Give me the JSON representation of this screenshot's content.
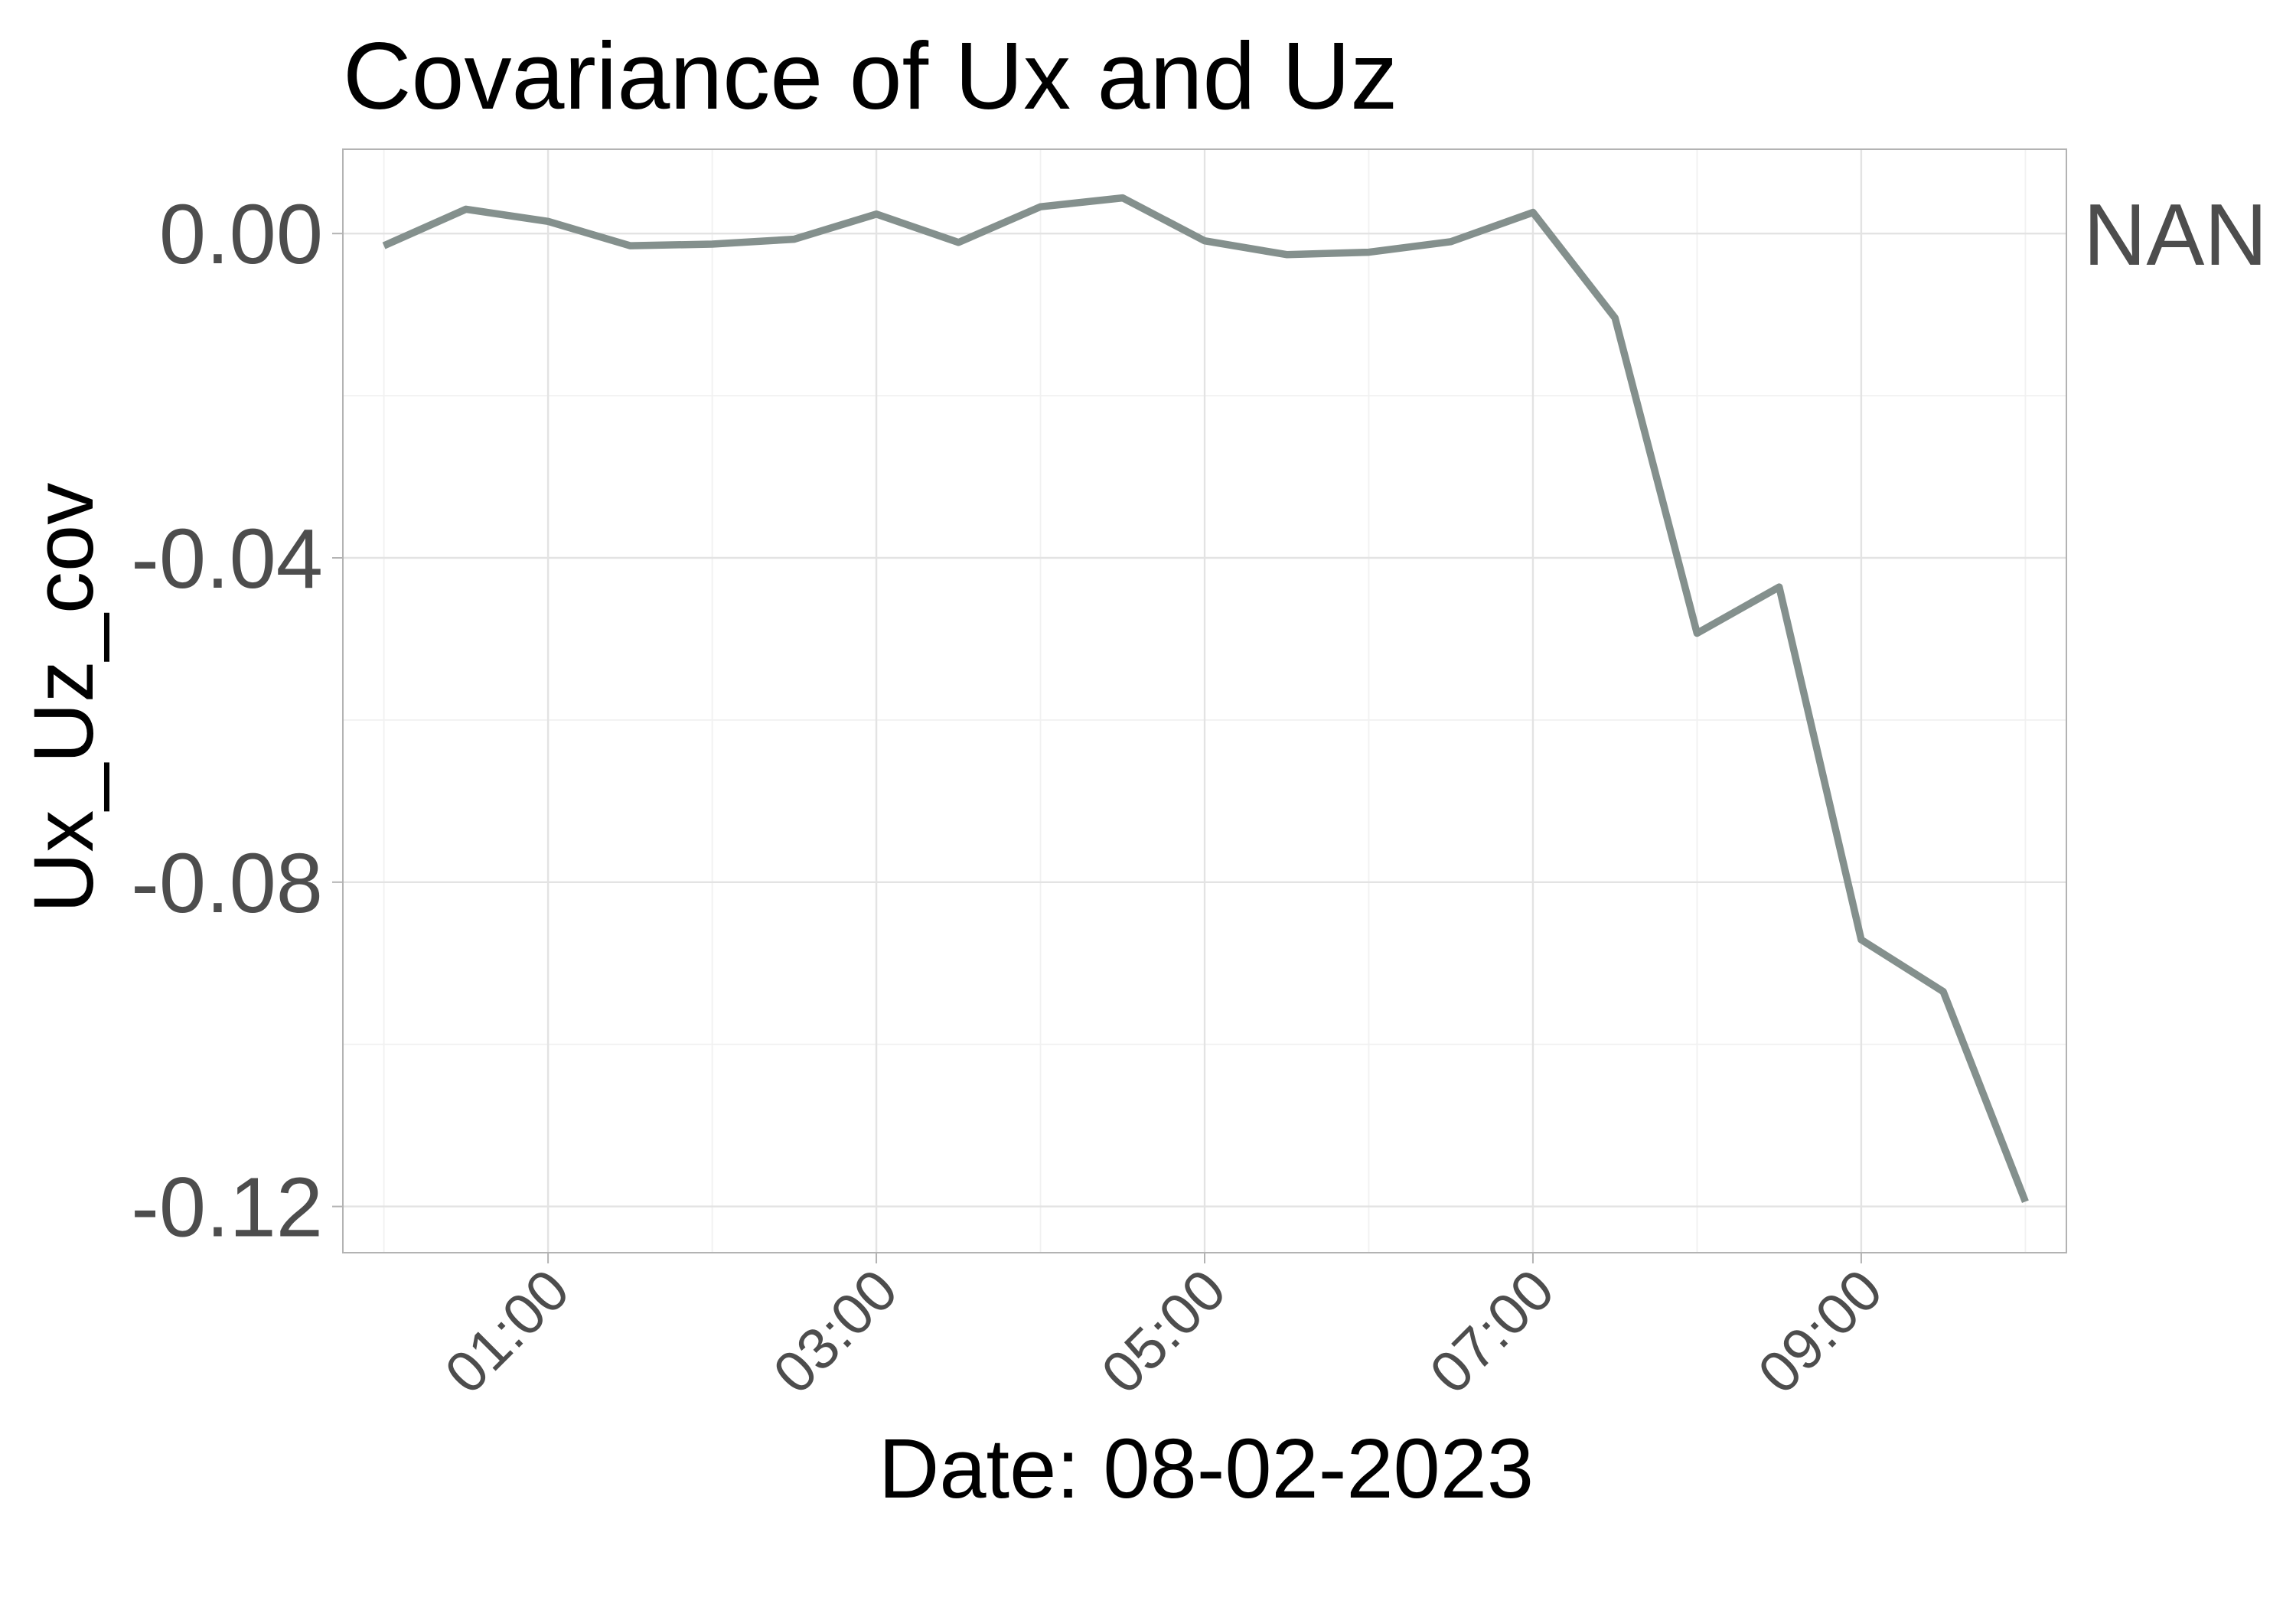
{
  "chart_data": {
    "type": "line",
    "title": "Covariance of Ux and Uz",
    "xlabel": "Date: 08-02-2023",
    "ylabel": "Ux_Uz_cov",
    "x_tick_labels": [
      "01:00",
      "03:00",
      "05:00",
      "07:00",
      "09:00"
    ],
    "x_ticks_hours": [
      1,
      3,
      5,
      7,
      9
    ],
    "y_tick_labels": [
      "0.00",
      "-0.04",
      "-0.08",
      "-0.12"
    ],
    "y_ticks": [
      0.0,
      -0.04,
      -0.08,
      -0.12
    ],
    "xlim_hours": [
      -0.25,
      10.25
    ],
    "ylim": [
      -0.1257,
      0.0104
    ],
    "grid": true,
    "legend_position": "right",
    "series": [
      {
        "name": "NAN",
        "color": "#84908d",
        "x": [
          "00:00",
          "00:30",
          "01:00",
          "01:30",
          "02:00",
          "02:30",
          "03:00",
          "03:30",
          "04:00",
          "04:30",
          "05:00",
          "05:30",
          "06:00",
          "06:30",
          "07:00",
          "07:30",
          "08:00",
          "08:30",
          "09:00",
          "09:30",
          "10:00"
        ],
        "values": [
          -0.0015,
          0.003,
          0.0015,
          -0.0015,
          -0.0013,
          -0.0007,
          0.0024,
          -0.0011,
          0.0033,
          0.0044,
          -0.0009,
          -0.0026,
          -0.0023,
          -0.001,
          0.0026,
          -0.0104,
          -0.0493,
          -0.0436,
          -0.0871,
          -0.0935,
          -0.1194
        ]
      }
    ]
  }
}
